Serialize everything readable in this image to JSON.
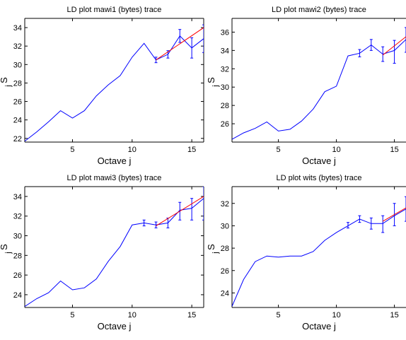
{
  "chart_data": [
    {
      "type": "line",
      "title": "LD plot mawi1 (bytes) trace",
      "xlabel": "Octave j",
      "ylabel": "S",
      "ylabel_sub": "j",
      "xlim": [
        1,
        16
      ],
      "ylim": [
        21.6,
        35
      ],
      "xticks": [
        5,
        10,
        15
      ],
      "yticks": [
        22,
        24,
        26,
        28,
        30,
        32,
        34
      ],
      "grid": false,
      "series": [
        {
          "x": [
            1,
            2,
            3,
            4,
            5,
            6,
            7,
            8,
            9,
            10,
            11,
            12,
            13,
            14,
            15,
            16
          ],
          "values": [
            21.7,
            22.7,
            23.8,
            25.0,
            24.2,
            25.0,
            26.6,
            27.8,
            28.8,
            30.8,
            32.3,
            30.5,
            31.1,
            33.1,
            31.8,
            32.8
          ],
          "color": "#0000ff",
          "error_bars": [
            {
              "x": 12,
              "lo": 30.2,
              "hi": 30.8
            },
            {
              "x": 13,
              "lo": 30.7,
              "hi": 31.5
            },
            {
              "x": 14,
              "lo": 32.4,
              "hi": 33.8
            },
            {
              "x": 15,
              "lo": 30.7,
              "hi": 32.9
            },
            {
              "x": 16,
              "lo": 31.3,
              "hi": 34.3
            }
          ]
        },
        {
          "x": [
            12,
            16
          ],
          "values": [
            30.5,
            34.0
          ],
          "color": "#ff0000"
        }
      ]
    },
    {
      "type": "line",
      "title": "LD plot mawi2 (bytes) trace",
      "xlabel": "Octave j",
      "ylabel": "S",
      "ylabel_sub": "j",
      "xlim": [
        1,
        16
      ],
      "ylim": [
        24,
        37.5
      ],
      "xticks": [
        5,
        10,
        15
      ],
      "yticks": [
        26,
        28,
        30,
        32,
        34,
        36
      ],
      "grid": false,
      "series": [
        {
          "x": [
            1,
            2,
            3,
            4,
            5,
            6,
            7,
            8,
            9,
            10,
            11,
            12,
            13,
            14,
            15,
            16
          ],
          "values": [
            24.3,
            25.0,
            25.5,
            26.2,
            25.2,
            25.4,
            26.3,
            27.6,
            29.5,
            30.1,
            33.4,
            33.7,
            34.6,
            33.6,
            34.0,
            35.2
          ],
          "color": "#0000ff",
          "error_bars": [
            {
              "x": 12,
              "lo": 33.3,
              "hi": 34.1
            },
            {
              "x": 13,
              "lo": 34.0,
              "hi": 35.2
            },
            {
              "x": 14,
              "lo": 32.8,
              "hi": 34.4
            },
            {
              "x": 15,
              "lo": 32.6,
              "hi": 35.1
            },
            {
              "x": 16,
              "lo": 33.8,
              "hi": 36.5
            }
          ]
        },
        {
          "x": [
            14,
            16
          ],
          "values": [
            33.5,
            35.5
          ],
          "color": "#ff0000"
        }
      ]
    },
    {
      "type": "line",
      "title": "LD plot mawi3 (bytes) trace",
      "xlabel": "Octave j",
      "ylabel": "S",
      "ylabel_sub": "j",
      "xlim": [
        1,
        16
      ],
      "ylim": [
        22.7,
        35
      ],
      "xticks": [
        5,
        10,
        15
      ],
      "yticks": [
        24,
        26,
        28,
        30,
        32,
        34
      ],
      "grid": false,
      "series": [
        {
          "x": [
            1,
            2,
            3,
            4,
            5,
            6,
            7,
            8,
            9,
            10,
            11,
            12,
            13,
            14,
            15,
            16
          ],
          "values": [
            22.8,
            23.6,
            24.2,
            25.4,
            24.5,
            24.7,
            25.6,
            27.4,
            28.9,
            31.1,
            31.3,
            31.1,
            31.3,
            32.6,
            32.8,
            33.8
          ],
          "color": "#0000ff",
          "error_bars": [
            {
              "x": 11,
              "lo": 31.0,
              "hi": 31.6
            },
            {
              "x": 12,
              "lo": 30.8,
              "hi": 31.4
            },
            {
              "x": 13,
              "lo": 30.8,
              "hi": 31.8
            },
            {
              "x": 14,
              "lo": 31.6,
              "hi": 33.4
            },
            {
              "x": 15,
              "lo": 31.6,
              "hi": 33.8
            },
            {
              "x": 16,
              "lo": 31.6,
              "hi": 35.0
            }
          ]
        },
        {
          "x": [
            12,
            16
          ],
          "values": [
            31.0,
            34.0
          ],
          "color": "#ff0000"
        }
      ]
    },
    {
      "type": "line",
      "title": "LD plot wits (bytes) trace",
      "xlabel": "Octave j",
      "ylabel": "S",
      "ylabel_sub": "j",
      "xlim": [
        1,
        16
      ],
      "ylim": [
        22.7,
        33.5
      ],
      "xticks": [
        5,
        10,
        15
      ],
      "yticks": [
        24,
        26,
        28,
        30,
        32
      ],
      "grid": false,
      "series": [
        {
          "x": [
            1,
            2,
            3,
            4,
            5,
            6,
            7,
            8,
            9,
            10,
            11,
            12,
            13,
            14,
            15,
            16
          ],
          "values": [
            22.8,
            25.2,
            26.8,
            27.3,
            27.2,
            27.3,
            27.3,
            27.7,
            28.7,
            29.4,
            30.0,
            30.6,
            30.2,
            30.2,
            30.9,
            31.5
          ],
          "color": "#0000ff",
          "error_bars": [
            {
              "x": 11,
              "lo": 29.8,
              "hi": 30.3
            },
            {
              "x": 12,
              "lo": 30.3,
              "hi": 30.9
            },
            {
              "x": 13,
              "lo": 29.7,
              "hi": 30.7
            },
            {
              "x": 14,
              "lo": 29.4,
              "hi": 30.9
            },
            {
              "x": 15,
              "lo": 30.0,
              "hi": 32.0
            },
            {
              "x": 16,
              "lo": 30.4,
              "hi": 32.6
            }
          ]
        },
        {
          "x": [
            14,
            16
          ],
          "values": [
            30.4,
            31.6
          ],
          "color": "#ff0000"
        }
      ]
    }
  ]
}
